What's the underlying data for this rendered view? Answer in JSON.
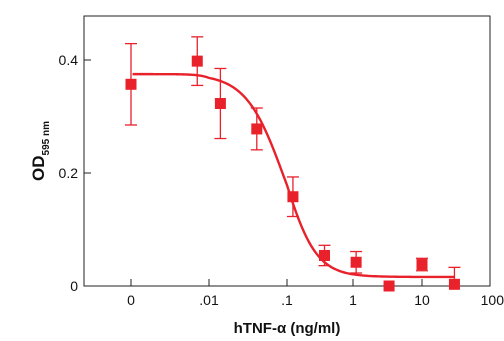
{
  "chart_data": {
    "type": "scatter",
    "title": "",
    "xlabel": "hTNF-α (ng/ml)",
    "ylabel": {
      "main": "OD",
      "subscript": "595 nm"
    },
    "x_scale": "log",
    "x_ticks": [
      {
        "value": 0.0001,
        "label": "0"
      },
      {
        "value": 0.01,
        "label": ".01"
      },
      {
        "value": 0.1,
        "label": ".1"
      },
      {
        "value": 1,
        "label": "1"
      },
      {
        "value": 10,
        "label": "10"
      },
      {
        "value": 100,
        "label": "100"
      }
    ],
    "y_ticks": [
      {
        "value": 0,
        "label": "0"
      },
      {
        "value": 0.2,
        "label": "0.2"
      },
      {
        "value": 0.4,
        "label": "0.4"
      }
    ],
    "xlim": [
      2e-05,
      100
    ],
    "ylim": [
      0,
      0.48
    ],
    "grid": false,
    "legend": "none",
    "color": "#e8212b",
    "series": [
      {
        "points": [
          {
            "x": 0.0001,
            "y": 0.357,
            "err": 0.072
          },
          {
            "x": 0.005,
            "y": 0.398,
            "err": 0.043
          },
          {
            "x": 0.014,
            "y": 0.323,
            "err": 0.062
          },
          {
            "x": 0.041,
            "y": 0.278,
            "err": 0.037
          },
          {
            "x": 0.123,
            "y": 0.158,
            "err": 0.035
          },
          {
            "x": 0.37,
            "y": 0.054,
            "err": 0.018
          },
          {
            "x": 1.11,
            "y": 0.042,
            "err": 0.019
          },
          {
            "x": 3.33,
            "y": 0.0,
            "err": 0.0
          },
          {
            "x": 10,
            "y": 0.038,
            "err": 0.011
          },
          {
            "x": 30,
            "y": 0.003,
            "err": 0.03
          }
        ]
      }
    ],
    "fit_curve": {
      "type": "four-parameter-logistic",
      "top": 0.375,
      "bottom": 0.016,
      "ec50": 0.09,
      "hill": 1.8
    }
  }
}
